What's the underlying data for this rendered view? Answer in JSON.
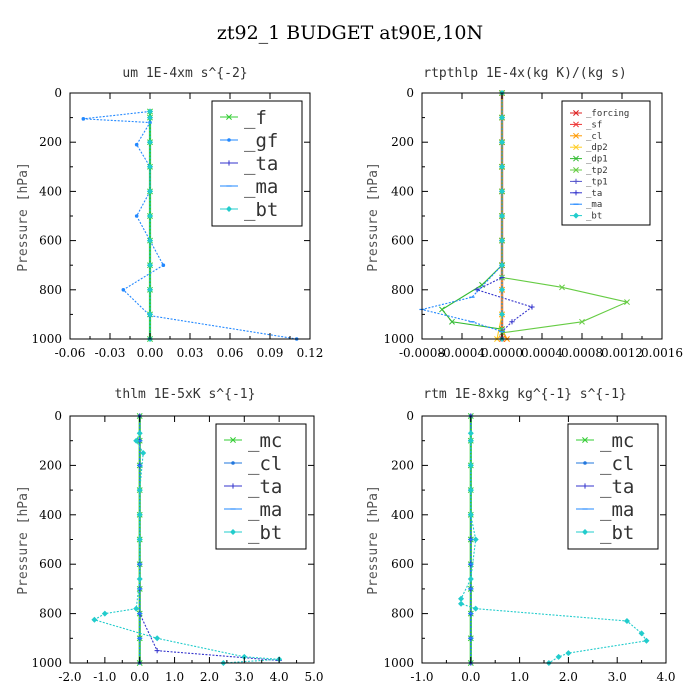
{
  "figure_title": "zt92_1  BUDGET at90E,10N",
  "chart_data": [
    {
      "type": "line",
      "title": "um  1E-4xm s^{-2}",
      "ylabel": "Pressure [hPa]",
      "xlim": [
        -0.06,
        0.12
      ],
      "ylim": [
        1000,
        0
      ],
      "xticks": [
        -0.06,
        -0.03,
        0.0,
        0.03,
        0.06,
        0.09,
        0.12
      ],
      "xtick_labels": [
        "-0.06",
        "-0.03",
        "0.00",
        "0.03",
        "0.06",
        "0.09",
        "0.12"
      ],
      "yticks": [
        0,
        200,
        400,
        600,
        800,
        1000
      ],
      "ytick_labels": [
        "0",
        "200",
        "400",
        "600",
        "800",
        "1000"
      ],
      "legend": "top-right",
      "legend_size": "large",
      "series": [
        {
          "name": "_f",
          "color": "#33cc33",
          "marker": "x",
          "x": [
            0.0,
            0.0,
            0.0,
            0.0,
            0.0,
            0.0,
            0.0,
            0.0,
            0.0,
            0.0,
            0.0
          ],
          "y": [
            75,
            100,
            200,
            300,
            400,
            500,
            600,
            700,
            800,
            900,
            1000
          ]
        },
        {
          "name": "_gf",
          "color": "#2288ff",
          "marker": "dot",
          "x": [
            0.0,
            -0.05,
            0.0,
            -0.01,
            0.0,
            0.0,
            -0.01,
            0.01,
            -0.02,
            0.0,
            0.11
          ],
          "y": [
            75,
            105,
            120,
            210,
            300,
            400,
            500,
            700,
            800,
            905,
            1000
          ]
        },
        {
          "name": "_ta",
          "color": "#3333cc",
          "marker": "plus",
          "x": [
            0.0,
            0.0,
            0.0,
            0.0,
            0.0,
            0.0,
            0.0,
            0.0,
            0.0,
            0.0,
            0.0
          ],
          "y": [
            75,
            100,
            200,
            300,
            400,
            500,
            600,
            700,
            800,
            900,
            1000
          ]
        },
        {
          "name": "_ma",
          "color": "#2288ff",
          "marker": "dash",
          "x": [
            0.0,
            0.0,
            0.0,
            0.0,
            0.0,
            0.0,
            0.0,
            0.0,
            0.0,
            0.0,
            0.0
          ],
          "y": [
            75,
            100,
            200,
            300,
            400,
            500,
            600,
            700,
            800,
            900,
            1000
          ]
        },
        {
          "name": "_bt",
          "color": "#22cccc",
          "marker": "diamond",
          "x": [
            0.0,
            0.0,
            0.0,
            0.0,
            0.0,
            0.0,
            0.0,
            0.0,
            0.0,
            0.0,
            0.0
          ],
          "y": [
            75,
            100,
            200,
            300,
            400,
            500,
            600,
            700,
            800,
            900,
            1000
          ]
        }
      ]
    },
    {
      "type": "line",
      "title": "rtpthlp  1E-4x(kg K)/(kg s)",
      "ylabel": "Pressure [hPa]",
      "xlim": [
        -0.0008,
        0.0016
      ],
      "ylim": [
        1000,
        0
      ],
      "xticks": [
        -0.0008,
        -0.0004,
        0.0,
        0.0004,
        0.0008,
        0.0012,
        0.0016
      ],
      "xtick_labels": [
        "-0.0008",
        "-0.0004",
        "0.0000",
        "0.0004",
        "0.0008",
        "0.0012",
        "0.0016"
      ],
      "yticks": [
        0,
        200,
        400,
        600,
        800,
        1000
      ],
      "ytick_labels": [
        "0",
        "200",
        "400",
        "600",
        "800",
        "1000"
      ],
      "legend": "top-right",
      "legend_size": "small",
      "series": [
        {
          "name": "_forcing",
          "color": "#dd2222",
          "marker": "x",
          "x": [
            0,
            0,
            0,
            0,
            0,
            0,
            0,
            0,
            0,
            0,
            0
          ],
          "y": [
            0,
            100,
            200,
            300,
            400,
            500,
            600,
            700,
            800,
            900,
            1000
          ]
        },
        {
          "name": "_sf",
          "color": "#ee3333",
          "marker": "x",
          "x": [
            0,
            0,
            0,
            0,
            0,
            0,
            0,
            0,
            0,
            0,
            0
          ],
          "y": [
            0,
            100,
            200,
            300,
            400,
            500,
            600,
            700,
            800,
            900,
            1000
          ]
        },
        {
          "name": "_cl",
          "color": "#ff9900",
          "marker": "x",
          "x": [
            0,
            0,
            0,
            0,
            0,
            0,
            0,
            0,
            0,
            0,
            0,
            5e-05
          ],
          "y": [
            0,
            100,
            200,
            300,
            400,
            500,
            600,
            700,
            800,
            900,
            960,
            1000
          ]
        },
        {
          "name": "_dp2",
          "color": "#ffcc22",
          "marker": "x",
          "x": [
            0,
            0,
            0,
            0,
            0,
            0,
            0,
            0,
            0,
            0,
            -5e-05
          ],
          "y": [
            0,
            100,
            200,
            300,
            400,
            500,
            600,
            700,
            800,
            900,
            1000
          ]
        },
        {
          "name": "_dp1",
          "color": "#33bb33",
          "marker": "x",
          "x": [
            0,
            0,
            0,
            0,
            0,
            0,
            0,
            0,
            -0.0002,
            -0.0006,
            -0.0005,
            0.0
          ],
          "y": [
            0,
            100,
            200,
            300,
            400,
            500,
            600,
            700,
            780,
            880,
            930,
            960
          ]
        },
        {
          "name": "_tp2",
          "color": "#66cc44",
          "marker": "x",
          "x": [
            0,
            0,
            0,
            0,
            0,
            0,
            0,
            0,
            0.0006,
            0.00125,
            0.0008,
            0.0
          ],
          "y": [
            0,
            100,
            200,
            300,
            400,
            500,
            600,
            750,
            790,
            850,
            930,
            975
          ]
        },
        {
          "name": "_tp1",
          "color": "#5555cc",
          "marker": "plus",
          "x": [
            0,
            0,
            0,
            0,
            0,
            0,
            0,
            0,
            0,
            0,
            0
          ],
          "y": [
            0,
            100,
            200,
            300,
            400,
            500,
            600,
            700,
            800,
            900,
            1000
          ]
        },
        {
          "name": "_ta",
          "color": "#3333cc",
          "marker": "plus",
          "x": [
            0,
            0,
            0,
            0,
            0,
            0,
            0,
            0,
            -0.00025,
            0.0003,
            0.0001,
            0.0
          ],
          "y": [
            0,
            100,
            200,
            300,
            400,
            500,
            600,
            750,
            800,
            870,
            930,
            970
          ]
        },
        {
          "name": "_ma",
          "color": "#2288ff",
          "marker": "dash",
          "x": [
            0,
            0,
            0,
            0,
            0,
            0,
            0,
            0,
            -0.0003,
            -0.0008,
            -0.0003,
            0.0
          ],
          "y": [
            0,
            100,
            200,
            300,
            400,
            500,
            600,
            700,
            830,
            880,
            930,
            970
          ]
        },
        {
          "name": "_bt",
          "color": "#22cccc",
          "marker": "diamond",
          "x": [
            0,
            0,
            0,
            0,
            0,
            0,
            0,
            0,
            0,
            0,
            0
          ],
          "y": [
            0,
            100,
            200,
            300,
            400,
            500,
            600,
            700,
            800,
            900,
            1000
          ]
        }
      ]
    },
    {
      "type": "line",
      "title": "thlm  1E-5xK s^{-1}",
      "ylabel": "Pressure [hPa]",
      "xlim": [
        -2.0,
        5.0
      ],
      "ylim": [
        1000,
        0
      ],
      "xticks": [
        -2.0,
        -1.0,
        0.0,
        1.0,
        2.0,
        3.0,
        4.0,
        5.0
      ],
      "xtick_labels": [
        "-2.0",
        "-1.0",
        "0.0",
        "1.0",
        "2.0",
        "3.0",
        "4.0",
        "5.0"
      ],
      "yticks": [
        0,
        200,
        400,
        600,
        800,
        1000
      ],
      "ytick_labels": [
        "0",
        "200",
        "400",
        "600",
        "800",
        "1000"
      ],
      "legend": "top-right",
      "legend_size": "large",
      "series": [
        {
          "name": "_mc",
          "color": "#33cc33",
          "marker": "x",
          "x": [
            0,
            0,
            0,
            0,
            0,
            0,
            0,
            0,
            0,
            0,
            0
          ],
          "y": [
            0,
            100,
            200,
            300,
            400,
            500,
            600,
            700,
            800,
            900,
            1000
          ]
        },
        {
          "name": "_cl",
          "color": "#2277dd",
          "marker": "dot",
          "x": [
            0,
            0,
            0,
            0,
            0,
            0,
            0,
            0,
            0,
            0,
            0
          ],
          "y": [
            0,
            100,
            200,
            300,
            400,
            500,
            600,
            700,
            800,
            900,
            1000
          ]
        },
        {
          "name": "_ta",
          "color": "#3333cc",
          "marker": "plus",
          "x": [
            0,
            0,
            0,
            0,
            0,
            0,
            0,
            0,
            0,
            0.5,
            4.0
          ],
          "y": [
            0,
            100,
            200,
            300,
            400,
            500,
            600,
            700,
            800,
            950,
            990
          ]
        },
        {
          "name": "_ma",
          "color": "#2288ff",
          "marker": "dash",
          "x": [
            0,
            0,
            0,
            0,
            0,
            0,
            0,
            0,
            0,
            0,
            0
          ],
          "y": [
            0,
            100,
            200,
            300,
            400,
            500,
            600,
            700,
            800,
            900,
            1000
          ]
        },
        {
          "name": "_bt",
          "color": "#22cccc",
          "marker": "diamond",
          "x": [
            0.0,
            -0.1,
            0.1,
            0.0,
            0.0,
            0.0,
            0.0,
            -0.1,
            -1.0,
            -1.3,
            0.5,
            3.0,
            4.0,
            2.4
          ],
          "y": [
            70,
            100,
            150,
            300,
            400,
            500,
            660,
            780,
            800,
            825,
            900,
            975,
            985,
            1000
          ]
        }
      ]
    },
    {
      "type": "line",
      "title": "rtm  1E-8xkg kg^{-1} s^{-1}",
      "ylabel": "Pressure [hPa]",
      "xlim": [
        -1.0,
        4.0
      ],
      "ylim": [
        1000,
        0
      ],
      "xticks": [
        -1.0,
        0.0,
        1.0,
        2.0,
        3.0,
        4.0
      ],
      "xtick_labels": [
        "-1.0",
        "0.0",
        "1.0",
        "2.0",
        "3.0",
        "4.0"
      ],
      "yticks": [
        0,
        200,
        400,
        600,
        800,
        1000
      ],
      "ytick_labels": [
        "0",
        "200",
        "400",
        "600",
        "800",
        "1000"
      ],
      "legend": "top-right",
      "legend_size": "large",
      "series": [
        {
          "name": "_mc",
          "color": "#33cc33",
          "marker": "x",
          "x": [
            0,
            0,
            0,
            0,
            0,
            0,
            0,
            0,
            0,
            0,
            0
          ],
          "y": [
            0,
            100,
            200,
            300,
            400,
            500,
            600,
            700,
            800,
            900,
            1000
          ]
        },
        {
          "name": "_cl",
          "color": "#2277dd",
          "marker": "dot",
          "x": [
            0,
            0,
            0,
            0,
            0,
            0,
            0,
            0,
            0,
            0,
            0
          ],
          "y": [
            0,
            100,
            200,
            300,
            400,
            500,
            600,
            700,
            800,
            900,
            1000
          ]
        },
        {
          "name": "_ta",
          "color": "#3333cc",
          "marker": "plus",
          "x": [
            0,
            0,
            0,
            0,
            0,
            0,
            0,
            0,
            0,
            0,
            0
          ],
          "y": [
            0,
            100,
            200,
            300,
            400,
            500,
            600,
            700,
            800,
            900,
            1000
          ]
        },
        {
          "name": "_ma",
          "color": "#2288ff",
          "marker": "dash",
          "x": [
            0,
            0,
            0,
            0,
            0,
            0,
            0,
            0,
            0,
            0,
            0
          ],
          "y": [
            0,
            100,
            200,
            300,
            400,
            500,
            600,
            700,
            800,
            900,
            1000
          ]
        },
        {
          "name": "_bt",
          "color": "#22cccc",
          "marker": "diamond",
          "x": [
            0.0,
            0.0,
            0.0,
            0.0,
            0.0,
            0.1,
            0.0,
            -0.2,
            -0.2,
            0.1,
            3.2,
            3.5,
            3.6,
            2.0,
            1.8,
            1.6
          ],
          "y": [
            70,
            100,
            200,
            300,
            400,
            500,
            660,
            740,
            760,
            780,
            830,
            880,
            910,
            960,
            975,
            1000
          ]
        }
      ]
    }
  ]
}
